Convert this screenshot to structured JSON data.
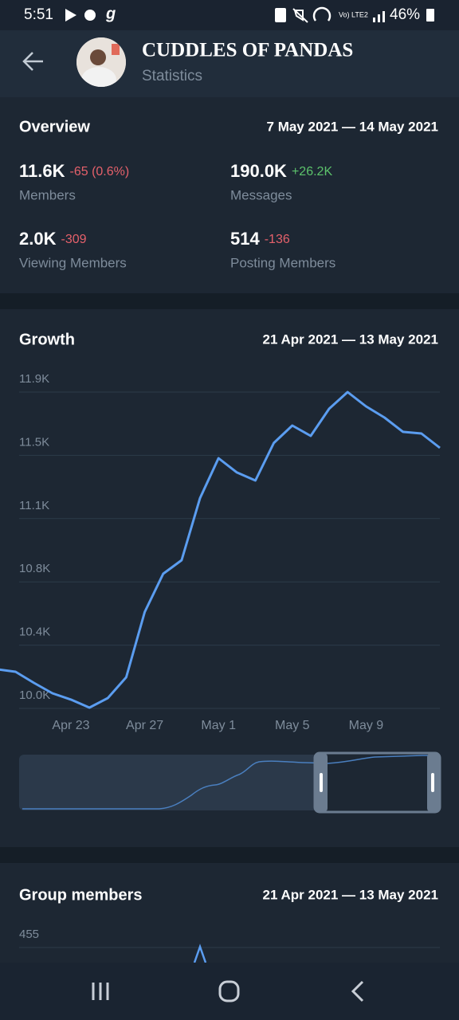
{
  "status_bar": {
    "time": "5:51",
    "battery": "46%"
  },
  "header": {
    "title": "CUDDLES OF PANDAS",
    "subtitle": "Statistics"
  },
  "overview": {
    "title": "Overview",
    "range": "7 May 2021 — 14 May 2021",
    "stats": [
      {
        "value": "11.6K",
        "change": "-65 (0.6%)",
        "label": "Members"
      },
      {
        "value": "190.0K",
        "change": "+26.2K",
        "label": "Messages"
      },
      {
        "value": "2.0K",
        "change": "-309",
        "label": "Viewing Members"
      },
      {
        "value": "514",
        "change": "-136",
        "label": "Posting Members"
      }
    ]
  },
  "chart_data": [
    {
      "type": "line",
      "title": "Growth",
      "subtitle": "21 Apr 2021 — 13 May 2021",
      "categories": [
        null,
        null,
        null,
        null,
        "Apr 23",
        null,
        null,
        null,
        "Apr 27",
        null,
        null,
        null,
        "May 1",
        null,
        null,
        null,
        "May 5",
        null,
        null,
        null,
        "May 9",
        null,
        null,
        null,
        null
      ],
      "series": [
        {
          "color": "#5b9df0",
          "values": [
            10235,
            10220,
            10153,
            10091,
            10053,
            10005,
            10062,
            10187,
            10579,
            10809,
            10890,
            11263,
            11503,
            11417,
            11369,
            11594,
            11699,
            11637,
            11800,
            11900,
            11814,
            11747,
            11661,
            11651,
            11565
          ]
        }
      ],
      "ylim": [
        10000,
        11900
      ],
      "yticks": [
        {
          "value": 10000,
          "label": "10.0K"
        },
        {
          "value": 10380,
          "label": "10.4K"
        },
        {
          "value": 10760,
          "label": "10.8K"
        },
        {
          "value": 11140,
          "label": "11.1K"
        },
        {
          "value": 11520,
          "label": "11.5K"
        },
        {
          "value": 11900,
          "label": "11.9K"
        }
      ],
      "grid": true
    },
    {
      "type": "line",
      "title": "Group members",
      "subtitle": "21 Apr 2021 — 13 May 2021",
      "yticks": [
        455
      ],
      "grid": true
    }
  ]
}
